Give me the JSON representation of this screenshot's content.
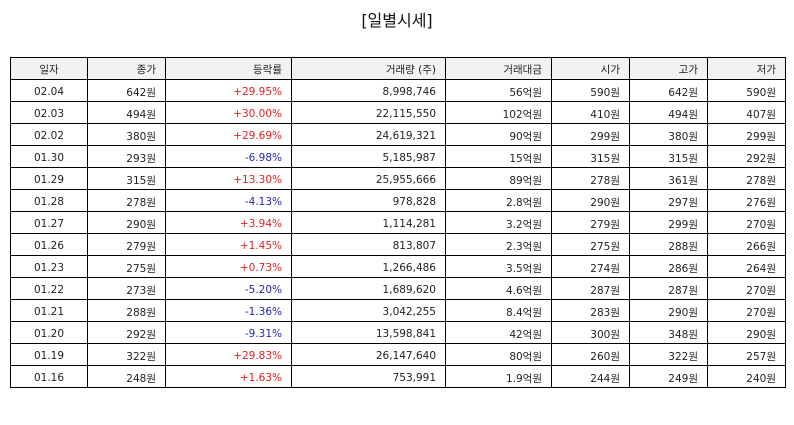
{
  "title": "[일별시세]",
  "colors": {
    "up": "#e02020",
    "down": "#2424b0",
    "header_bg": "#f2f2f2"
  },
  "table": {
    "headers": [
      "일자",
      "종가",
      "등락률",
      "거래량 (주)",
      "거래대금",
      "시가",
      "고가",
      "저가"
    ],
    "rows": [
      {
        "date": "02.04",
        "close": "642원",
        "change": "+29.95%",
        "direction": "up",
        "volume": "8,998,746",
        "amount": "56억원",
        "open": "590원",
        "high": "642원",
        "low": "590원"
      },
      {
        "date": "02.03",
        "close": "494원",
        "change": "+30.00%",
        "direction": "up",
        "volume": "22,115,550",
        "amount": "102억원",
        "open": "410원",
        "high": "494원",
        "low": "407원"
      },
      {
        "date": "02.02",
        "close": "380원",
        "change": "+29.69%",
        "direction": "up",
        "volume": "24,619,321",
        "amount": "90억원",
        "open": "299원",
        "high": "380원",
        "low": "299원"
      },
      {
        "date": "01.30",
        "close": "293원",
        "change": "-6.98%",
        "direction": "down",
        "volume": "5,185,987",
        "amount": "15억원",
        "open": "315원",
        "high": "315원",
        "low": "292원"
      },
      {
        "date": "01.29",
        "close": "315원",
        "change": "+13.30%",
        "direction": "up",
        "volume": "25,955,666",
        "amount": "89억원",
        "open": "278원",
        "high": "361원",
        "low": "278원"
      },
      {
        "date": "01.28",
        "close": "278원",
        "change": "-4.13%",
        "direction": "down",
        "volume": "978,828",
        "amount": "2.8억원",
        "open": "290원",
        "high": "297원",
        "low": "276원"
      },
      {
        "date": "01.27",
        "close": "290원",
        "change": "+3.94%",
        "direction": "up",
        "volume": "1,114,281",
        "amount": "3.2억원",
        "open": "279원",
        "high": "299원",
        "low": "270원"
      },
      {
        "date": "01.26",
        "close": "279원",
        "change": "+1.45%",
        "direction": "up",
        "volume": "813,807",
        "amount": "2.3억원",
        "open": "275원",
        "high": "288원",
        "low": "266원"
      },
      {
        "date": "01.23",
        "close": "275원",
        "change": "+0.73%",
        "direction": "up",
        "volume": "1,266,486",
        "amount": "3.5억원",
        "open": "274원",
        "high": "286원",
        "low": "264원"
      },
      {
        "date": "01.22",
        "close": "273원",
        "change": "-5.20%",
        "direction": "down",
        "volume": "1,689,620",
        "amount": "4.6억원",
        "open": "287원",
        "high": "287원",
        "low": "270원"
      },
      {
        "date": "01.21",
        "close": "288원",
        "change": "-1.36%",
        "direction": "down",
        "volume": "3,042,255",
        "amount": "8.4억원",
        "open": "283원",
        "high": "290원",
        "low": "270원"
      },
      {
        "date": "01.20",
        "close": "292원",
        "change": "-9.31%",
        "direction": "down",
        "volume": "13,598,841",
        "amount": "42억원",
        "open": "300원",
        "high": "348원",
        "low": "290원"
      },
      {
        "date": "01.19",
        "close": "322원",
        "change": "+29.83%",
        "direction": "up",
        "volume": "26,147,640",
        "amount": "80억원",
        "open": "260원",
        "high": "322원",
        "low": "257원"
      },
      {
        "date": "01.16",
        "close": "248원",
        "change": "+1.63%",
        "direction": "up",
        "volume": "753,991",
        "amount": "1.9억원",
        "open": "244원",
        "high": "249원",
        "low": "240원"
      }
    ]
  }
}
